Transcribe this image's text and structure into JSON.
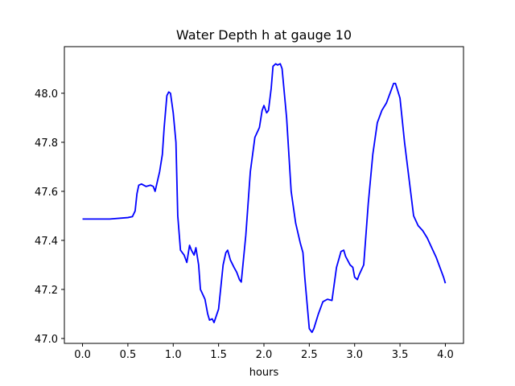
{
  "chart_data": {
    "type": "line",
    "title": "Water Depth h at gauge 10",
    "xlabel": "hours",
    "ylabel": "",
    "xlim": [
      -0.2,
      4.2
    ],
    "ylim": [
      46.98,
      48.19
    ],
    "xticks": [
      0.0,
      0.5,
      1.0,
      1.5,
      2.0,
      2.5,
      3.0,
      3.5,
      4.0
    ],
    "xtick_labels": [
      "0.0",
      "0.5",
      "1.0",
      "1.5",
      "2.0",
      "2.5",
      "3.0",
      "3.5",
      "4.0"
    ],
    "yticks": [
      47.0,
      47.2,
      47.4,
      47.6,
      47.8,
      48.0
    ],
    "ytick_labels": [
      "47.0",
      "47.2",
      "47.4",
      "47.6",
      "47.8",
      "48.0"
    ],
    "grid": false,
    "series": [
      {
        "color": "#0000ff",
        "x": [
          0.0,
          0.3,
          0.5,
          0.55,
          0.58,
          0.6,
          0.62,
          0.65,
          0.7,
          0.75,
          0.78,
          0.8,
          0.85,
          0.88,
          0.9,
          0.93,
          0.95,
          0.97,
          1.0,
          1.03,
          1.05,
          1.08,
          1.12,
          1.15,
          1.18,
          1.2,
          1.23,
          1.25,
          1.28,
          1.3,
          1.35,
          1.38,
          1.4,
          1.43,
          1.45,
          1.5,
          1.55,
          1.58,
          1.6,
          1.63,
          1.67,
          1.7,
          1.73,
          1.75,
          1.8,
          1.85,
          1.9,
          1.95,
          1.98,
          2.0,
          2.03,
          2.05,
          2.08,
          2.1,
          2.13,
          2.15,
          2.18,
          2.2,
          2.25,
          2.3,
          2.35,
          2.4,
          2.43,
          2.45,
          2.5,
          2.53,
          2.55,
          2.6,
          2.65,
          2.7,
          2.75,
          2.8,
          2.85,
          2.88,
          2.9,
          2.95,
          2.98,
          3.0,
          3.03,
          3.05,
          3.1,
          3.15,
          3.2,
          3.25,
          3.3,
          3.35,
          3.4,
          3.43,
          3.45,
          3.5,
          3.55,
          3.6,
          3.65,
          3.7,
          3.75,
          3.8,
          3.85,
          3.9,
          3.95,
          3.98,
          4.0
        ],
        "y": [
          47.487,
          47.487,
          47.493,
          47.497,
          47.52,
          47.59,
          47.625,
          47.63,
          47.62,
          47.625,
          47.62,
          47.6,
          47.68,
          47.75,
          47.86,
          47.99,
          48.005,
          48.0,
          47.92,
          47.8,
          47.5,
          47.36,
          47.34,
          47.31,
          47.38,
          47.36,
          47.34,
          47.37,
          47.3,
          47.2,
          47.16,
          47.1,
          47.075,
          47.08,
          47.065,
          47.12,
          47.3,
          47.35,
          47.36,
          47.32,
          47.29,
          47.27,
          47.24,
          47.23,
          47.42,
          47.68,
          47.82,
          47.86,
          47.93,
          47.95,
          47.92,
          47.93,
          48.02,
          48.11,
          48.12,
          48.115,
          48.12,
          48.1,
          47.9,
          47.6,
          47.47,
          47.39,
          47.35,
          47.25,
          47.04,
          47.025,
          47.04,
          47.1,
          47.15,
          47.16,
          47.155,
          47.29,
          47.355,
          47.36,
          47.335,
          47.3,
          47.29,
          47.25,
          47.24,
          47.26,
          47.3,
          47.55,
          47.75,
          47.88,
          47.93,
          47.96,
          48.01,
          48.04,
          48.04,
          47.98,
          47.8,
          47.65,
          47.5,
          47.46,
          47.44,
          47.41,
          47.37,
          47.33,
          47.28,
          47.25,
          47.225
        ]
      }
    ]
  }
}
